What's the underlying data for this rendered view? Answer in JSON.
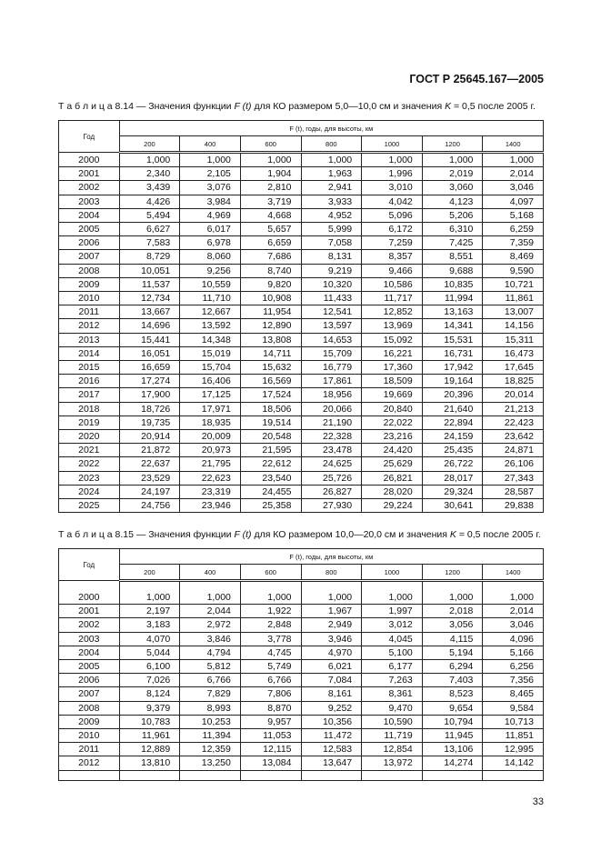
{
  "header": {
    "standard": "ГОСТ Р 25645.167—2005"
  },
  "tables": [
    {
      "caption_prefix": "Т а б л и ц а 8.14 — Значения функции ",
      "caption_func": "F (t)",
      "caption_mid": " для КО размером 5,0—10,0 см и значения ",
      "caption_k": "K",
      "caption_suffix": " = 0,5 после 2005 г.",
      "year_header": "Год",
      "group_header": "F (t), годы, для высоты, км",
      "altitudes": [
        "200",
        "400",
        "600",
        "800",
        "1000",
        "1200",
        "1400"
      ],
      "rows": [
        [
          "2000",
          "1,000",
          "1,000",
          "1,000",
          "1,000",
          "1,000",
          "1,000",
          "1,000"
        ],
        [
          "2001",
          "2,340",
          "2,105",
          "1,904",
          "1,963",
          "1,996",
          "2,019",
          "2,014"
        ],
        [
          "2002",
          "3,439",
          "3,076",
          "2,810",
          "2,941",
          "3,010",
          "3,060",
          "3,046"
        ],
        [
          "2003",
          "4,426",
          "3,984",
          "3,719",
          "3,933",
          "4,042",
          "4,123",
          "4,097"
        ],
        [
          "2004",
          "5,494",
          "4,969",
          "4,668",
          "4,952",
          "5,096",
          "5,206",
          "5,168"
        ],
        [
          "2005",
          "6,627",
          "6,017",
          "5,657",
          "5,999",
          "6,172",
          "6,310",
          "6,259"
        ],
        [
          "2006",
          "7,583",
          "6,978",
          "6,659",
          "7,058",
          "7,259",
          "7,425",
          "7,359"
        ],
        [
          "2007",
          "8,729",
          "8,060",
          "7,686",
          "8,131",
          "8,357",
          "8,551",
          "8,469"
        ],
        [
          "2008",
          "10,051",
          "9,256",
          "8,740",
          "9,219",
          "9,466",
          "9,688",
          "9,590"
        ],
        [
          "2009",
          "11,537",
          "10,559",
          "9,820",
          "10,320",
          "10,586",
          "10,835",
          "10,721"
        ],
        [
          "2010",
          "12,734",
          "11,710",
          "10,908",
          "11,433",
          "11,717",
          "11,994",
          "11,861"
        ],
        [
          "2011",
          "13,667",
          "12,667",
          "11,954",
          "12,541",
          "12,852",
          "13,163",
          "13,007"
        ],
        [
          "2012",
          "14,696",
          "13,592",
          "12,890",
          "13,597",
          "13,969",
          "14,341",
          "14,156"
        ],
        [
          "2013",
          "15,441",
          "14,348",
          "13,808",
          "14,653",
          "15,092",
          "15,531",
          "15,311"
        ],
        [
          "2014",
          "16,051",
          "15,019",
          "14,711",
          "15,709",
          "16,221",
          "16,731",
          "16,473"
        ],
        [
          "2015",
          "16,659",
          "15,704",
          "15,632",
          "16,779",
          "17,360",
          "17,942",
          "17,645"
        ],
        [
          "2016",
          "17,274",
          "16,406",
          "16,569",
          "17,861",
          "18,509",
          "19,164",
          "18,825"
        ],
        [
          "2017",
          "17,900",
          "17,125",
          "17,524",
          "18,956",
          "19,669",
          "20,396",
          "20,014"
        ],
        [
          "2018",
          "18,726",
          "17,971",
          "18,506",
          "20,066",
          "20,840",
          "21,640",
          "21,213"
        ],
        [
          "2019",
          "19,735",
          "18,935",
          "19,514",
          "21,190",
          "22,022",
          "22,894",
          "22,423"
        ],
        [
          "2020",
          "20,914",
          "20,009",
          "20,548",
          "22,328",
          "23,216",
          "24,159",
          "23,642"
        ],
        [
          "2021",
          "21,872",
          "20,973",
          "21,595",
          "23,478",
          "24,420",
          "25,435",
          "24,871"
        ],
        [
          "2022",
          "22,637",
          "21,795",
          "22,612",
          "24,625",
          "25,629",
          "26,722",
          "26,106"
        ],
        [
          "2023",
          "23,529",
          "22,623",
          "23,540",
          "25,726",
          "26,821",
          "28,017",
          "27,343"
        ],
        [
          "2024",
          "24,197",
          "23,319",
          "24,455",
          "26,827",
          "28,020",
          "29,324",
          "28,587"
        ],
        [
          "2025",
          "24,756",
          "23,946",
          "25,358",
          "27,930",
          "29,224",
          "30,641",
          "29,838"
        ]
      ]
    },
    {
      "caption_prefix": "Т а б л и ц а 8.15 — Значения функции ",
      "caption_func": "F (t)",
      "caption_mid": " для КО размером 10,0—20,0 см и значения ",
      "caption_k": "K",
      "caption_suffix": " = 0,5 после 2005 г.",
      "year_header": "Год",
      "group_header": "F (t), годы, для высоты, км",
      "altitudes": [
        "200",
        "400",
        "600",
        "800",
        "1000",
        "1200",
        "1400"
      ],
      "rows": [
        [
          "2000",
          "1,000",
          "1,000",
          "1,000",
          "1,000",
          "1,000",
          "1,000",
          "1,000"
        ],
        [
          "2001",
          "2,197",
          "2,044",
          "1,922",
          "1,967",
          "1,997",
          "2,018",
          "2,014"
        ],
        [
          "2002",
          "3,183",
          "2,972",
          "2,848",
          "2,949",
          "3,012",
          "3,056",
          "3,046"
        ],
        [
          "2003",
          "4,070",
          "3,846",
          "3,778",
          "3,946",
          "4,045",
          "4,115",
          "4,096"
        ],
        [
          "2004",
          "5,044",
          "4,794",
          "4,745",
          "4,970",
          "5,100",
          "5,194",
          "5,166"
        ],
        [
          "2005",
          "6,100",
          "5,812",
          "5,749",
          "6,021",
          "6,177",
          "6,294",
          "6,256"
        ],
        [
          "2006",
          "7,026",
          "6,766",
          "6,766",
          "7,084",
          "7,263",
          "7,403",
          "7,356"
        ],
        [
          "2007",
          "8,124",
          "7,829",
          "7,806",
          "8,161",
          "8,361",
          "8,523",
          "8,465"
        ],
        [
          "2008",
          "9,379",
          "8,993",
          "8,870",
          "9,252",
          "9,470",
          "9,654",
          "9,584"
        ],
        [
          "2009",
          "10,783",
          "10,253",
          "9,957",
          "10,356",
          "10,590",
          "10,794",
          "10,713"
        ],
        [
          "2010",
          "11,961",
          "11,394",
          "11,053",
          "11,472",
          "11,719",
          "11,945",
          "11,851"
        ],
        [
          "2011",
          "12,889",
          "12,359",
          "12,115",
          "12,583",
          "12,854",
          "13,106",
          "12,995"
        ],
        [
          "2012",
          "13,810",
          "13,250",
          "13,084",
          "13,647",
          "13,972",
          "14,274",
          "14,142"
        ]
      ]
    }
  ],
  "footer": {
    "page_number": "33"
  }
}
